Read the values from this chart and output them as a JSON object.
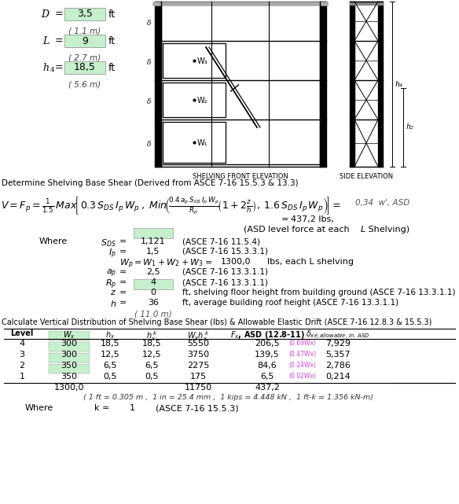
{
  "bg_color": "#ffffff",
  "green_fill": "#c6efce",
  "params": [
    {
      "label": "D",
      "sub_label": "",
      "val": "3,5",
      "unit": "ft",
      "sub": "( 1.1 m)"
    },
    {
      "label": "L",
      "sub_label": "",
      "val": "9",
      "unit": "ft",
      "sub": "( 2.7 m)"
    },
    {
      "label": "h",
      "sub_label": "4",
      "val": "18,5",
      "unit": "ft",
      "sub": "( 5.6 m)"
    }
  ],
  "where_vars": [
    {
      "label": "S_{DS}",
      "val": "1,121",
      "green": true,
      "note": "(ASCE 7-16 11.5.4)"
    },
    {
      "label": "I_p",
      "val": "1,5",
      "green": false,
      "note": "(ASCE 7-16 15.3.3.1)"
    },
    {
      "label": "W_p = W_1 + W_2 + W_3 =",
      "val": "1300,0",
      "green": false,
      "note": "lbs, each L shelving",
      "wide": true
    },
    {
      "label": "a_p",
      "val": "2,5",
      "green": false,
      "note": "(ASCE 7-16 13.3.1.1)"
    },
    {
      "label": "R_p",
      "val": "4",
      "green": false,
      "note": "(ASCE 7-16 13.3.1.1)"
    },
    {
      "label": "z",
      "val": "0",
      "green": true,
      "note": "ft, shelving floor height from building ground (ASCE 7-16 13.3.1.1)"
    },
    {
      "label": "h",
      "val": "36",
      "green": false,
      "note": "ft, average building roof height (ASCE 7-16 13.3.1.1)"
    }
  ],
  "table_data": [
    [
      "4",
      "300",
      "18,5",
      "18,5",
      "5550",
      "206,5",
      "(0.69Wx)",
      "7,929"
    ],
    [
      "3",
      "300",
      "12,5",
      "12,5",
      "3750",
      "139,5",
      "(0.47Wx)",
      "5,357"
    ],
    [
      "2",
      "350",
      "6,5",
      "6,5",
      "2275",
      "84,6",
      "(0.24Wx)",
      "2,786"
    ],
    [
      "1",
      "350",
      "0,5",
      "0,5",
      "175",
      "6,5",
      "(0.02Wx)",
      "0,214"
    ]
  ]
}
